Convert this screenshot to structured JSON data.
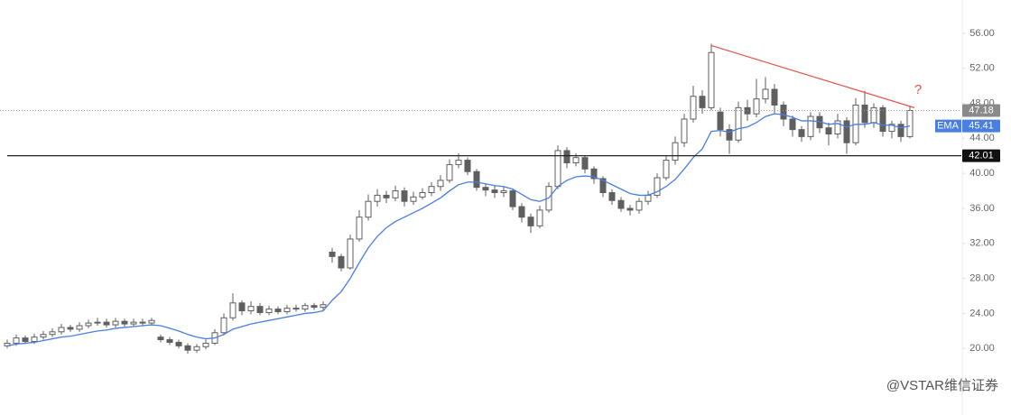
{
  "chart_data": {
    "type": "candlestick",
    "open": [
      20.3,
      20.6,
      21.2,
      20.8,
      21.3,
      21.6,
      21.9,
      22.4,
      22.2,
      22.6,
      22.9,
      23.0,
      22.7,
      23.1,
      22.8,
      23.0,
      22.9,
      21.3,
      21.0,
      20.7,
      20.3,
      19.8,
      20.2,
      20.6,
      21.8,
      23.5,
      25.2,
      24.3,
      24.8,
      24.1,
      24.5,
      24.2,
      24.6,
      24.5,
      24.9,
      24.7,
      31.0,
      30.5,
      29.2,
      32.5,
      35.0,
      36.8,
      37.5,
      37.2,
      38.0,
      36.8,
      37.3,
      37.8,
      38.5,
      39.2,
      41.0,
      41.5,
      40.2,
      38.4,
      38.1,
      37.8,
      38.0,
      36.2,
      35.0,
      34.0,
      35.8,
      38.5,
      42.6,
      41.2,
      41.8,
      40.5,
      39.4,
      37.8,
      36.9,
      36.0,
      35.8,
      36.8,
      37.5,
      39.5,
      41.5,
      43.5,
      46.2,
      48.8,
      47.5,
      47.0,
      45.0,
      43.8,
      47.5,
      46.8,
      48.5,
      49.6,
      47.8,
      46.2,
      45.0,
      44.2,
      46.5,
      45.2,
      44.5,
      46.0,
      43.5,
      47.8,
      45.8,
      47.5,
      44.8,
      45.6,
      44.2
    ],
    "high": [
      21.0,
      21.6,
      21.5,
      21.7,
      22.0,
      22.3,
      22.8,
      22.7,
      23.0,
      23.3,
      23.5,
      23.4,
      23.5,
      23.4,
      23.4,
      23.4,
      23.5,
      21.6,
      21.3,
      21.0,
      20.6,
      20.5,
      21.0,
      22.2,
      24.0,
      26.3,
      25.5,
      25.4,
      25.2,
      24.9,
      24.8,
      25.0,
      25.0,
      25.2,
      25.2,
      25.4,
      31.5,
      30.8,
      33.0,
      35.8,
      37.6,
      38.2,
      38.0,
      38.6,
      38.4,
      37.9,
      38.3,
      39.0,
      39.8,
      41.6,
      42.3,
      41.8,
      40.5,
      38.8,
      38.6,
      38.5,
      38.2,
      36.6,
      35.4,
      36.3,
      39.0,
      43.2,
      43.0,
      42.3,
      42.0,
      40.8,
      39.7,
      38.2,
      37.3,
      36.4,
      37.2,
      38.0,
      40.0,
      42.0,
      44.2,
      46.8,
      50.0,
      49.5,
      54.8,
      47.5,
      45.6,
      48.2,
      48.4,
      50.8,
      51.0,
      50.2,
      48.2,
      46.6,
      45.4,
      47.0,
      47.0,
      45.8,
      46.8,
      46.4,
      48.6,
      49.4,
      48.0,
      47.8,
      46.0,
      46.0,
      47.6
    ],
    "low": [
      20.0,
      20.3,
      20.5,
      20.5,
      21.0,
      21.3,
      21.6,
      21.9,
      21.9,
      22.3,
      22.6,
      22.4,
      22.4,
      22.5,
      22.5,
      22.6,
      22.6,
      20.7,
      20.4,
      20.0,
      19.4,
      19.5,
      19.9,
      20.4,
      21.5,
      23.2,
      23.8,
      23.9,
      23.8,
      23.8,
      23.9,
      23.9,
      24.2,
      24.2,
      24.4,
      24.4,
      29.8,
      28.8,
      29.0,
      32.2,
      34.6,
      36.2,
      36.6,
      36.8,
      36.2,
      36.4,
      37.0,
      37.4,
      38.0,
      38.9,
      40.6,
      39.8,
      38.0,
      37.4,
      37.2,
      37.3,
      35.8,
      34.4,
      33.2,
      33.7,
      35.5,
      38.2,
      40.6,
      40.8,
      40.0,
      38.8,
      37.3,
      36.4,
      35.6,
      35.2,
      35.4,
      36.4,
      37.2,
      39.2,
      41.0,
      43.0,
      45.8,
      46.8,
      47.2,
      44.2,
      42.2,
      43.5,
      46.0,
      46.4,
      48.0,
      46.8,
      45.4,
      44.2,
      43.6,
      43.8,
      44.6,
      43.2,
      44.0,
      42.2,
      43.2,
      45.2,
      45.2,
      44.2,
      44.0,
      43.6,
      44.0
    ],
    "close": [
      20.6,
      21.2,
      20.8,
      21.3,
      21.6,
      21.9,
      22.4,
      22.2,
      22.6,
      22.9,
      23.0,
      22.7,
      23.1,
      22.8,
      23.0,
      22.9,
      23.2,
      21.0,
      20.7,
      20.3,
      19.8,
      20.2,
      20.6,
      21.8,
      23.5,
      25.2,
      24.3,
      24.8,
      24.1,
      24.5,
      24.2,
      24.6,
      24.5,
      24.9,
      24.7,
      25.0,
      30.5,
      29.2,
      32.5,
      35.0,
      36.8,
      37.5,
      37.2,
      38.0,
      36.8,
      37.3,
      37.8,
      38.5,
      39.2,
      41.0,
      41.5,
      40.2,
      38.4,
      38.1,
      37.8,
      38.0,
      36.2,
      35.0,
      34.0,
      35.8,
      38.5,
      42.6,
      41.2,
      41.8,
      40.5,
      39.4,
      37.8,
      36.9,
      36.0,
      35.8,
      36.8,
      37.5,
      39.5,
      41.5,
      43.5,
      46.2,
      48.8,
      47.5,
      53.8,
      45.0,
      43.8,
      47.5,
      46.8,
      48.5,
      49.6,
      47.8,
      46.2,
      45.0,
      44.2,
      46.5,
      45.2,
      44.5,
      46.0,
      43.5,
      47.8,
      45.8,
      47.5,
      44.8,
      45.6,
      44.2,
      47.18
    ],
    "ema": [
      20.3,
      20.5,
      20.6,
      20.7,
      20.9,
      21.1,
      21.3,
      21.4,
      21.6,
      21.8,
      22.0,
      22.1,
      22.3,
      22.4,
      22.5,
      22.6,
      22.7,
      22.6,
      22.3,
      22.0,
      21.6,
      21.3,
      21.1,
      21.2,
      21.6,
      22.2,
      22.5,
      22.8,
      23.0,
      23.2,
      23.4,
      23.6,
      23.8,
      24.0,
      24.1,
      24.3,
      25.5,
      26.5,
      28.0,
      29.8,
      31.5,
      32.8,
      33.8,
      34.5,
      35.0,
      35.5,
      36.0,
      36.6,
      37.2,
      38.0,
      38.7,
      39.0,
      39.0,
      38.8,
      38.6,
      38.5,
      38.2,
      37.6,
      37.0,
      36.8,
      37.2,
      38.5,
      39.2,
      39.6,
      39.7,
      39.6,
      39.2,
      38.7,
      38.2,
      37.7,
      37.5,
      37.5,
      37.9,
      38.5,
      39.3,
      40.5,
      41.8,
      42.8,
      44.8,
      44.9,
      44.7,
      45.1,
      45.3,
      45.8,
      46.5,
      46.8,
      46.7,
      46.4,
      46.0,
      46.0,
      45.9,
      45.6,
      45.7,
      45.3,
      45.6,
      45.6,
      45.8,
      45.5,
      45.5,
      45.2,
      45.41
    ],
    "up_color": "#ffffff",
    "down_color": "#5f5f5f",
    "ema_color": "#4a7fe0",
    "ylim": [
      12.4,
      59.8
    ],
    "yticks": [
      {
        "value": 20,
        "label": "20.00"
      },
      {
        "value": 24,
        "label": "24.00"
      },
      {
        "value": 28,
        "label": "28.00"
      },
      {
        "value": 32,
        "label": "32.00"
      },
      {
        "value": 36,
        "label": "36.00"
      },
      {
        "value": 40,
        "label": "40.00"
      },
      {
        "value": 44,
        "label": "44.00"
      },
      {
        "value": 48,
        "label": "48.00"
      },
      {
        "value": 52,
        "label": "52.00"
      },
      {
        "value": 56,
        "label": "56.00"
      }
    ],
    "last_price": 47.18,
    "ema_label": "EMA",
    "ema_last": 45.41,
    "level": 42.01,
    "trendline": {
      "start": [
        78,
        54.6
      ],
      "end": [
        100.5,
        47.5
      ],
      "color": "#e5534b"
    },
    "annotation": "?",
    "watermark": "@VSTAR维信证券"
  }
}
